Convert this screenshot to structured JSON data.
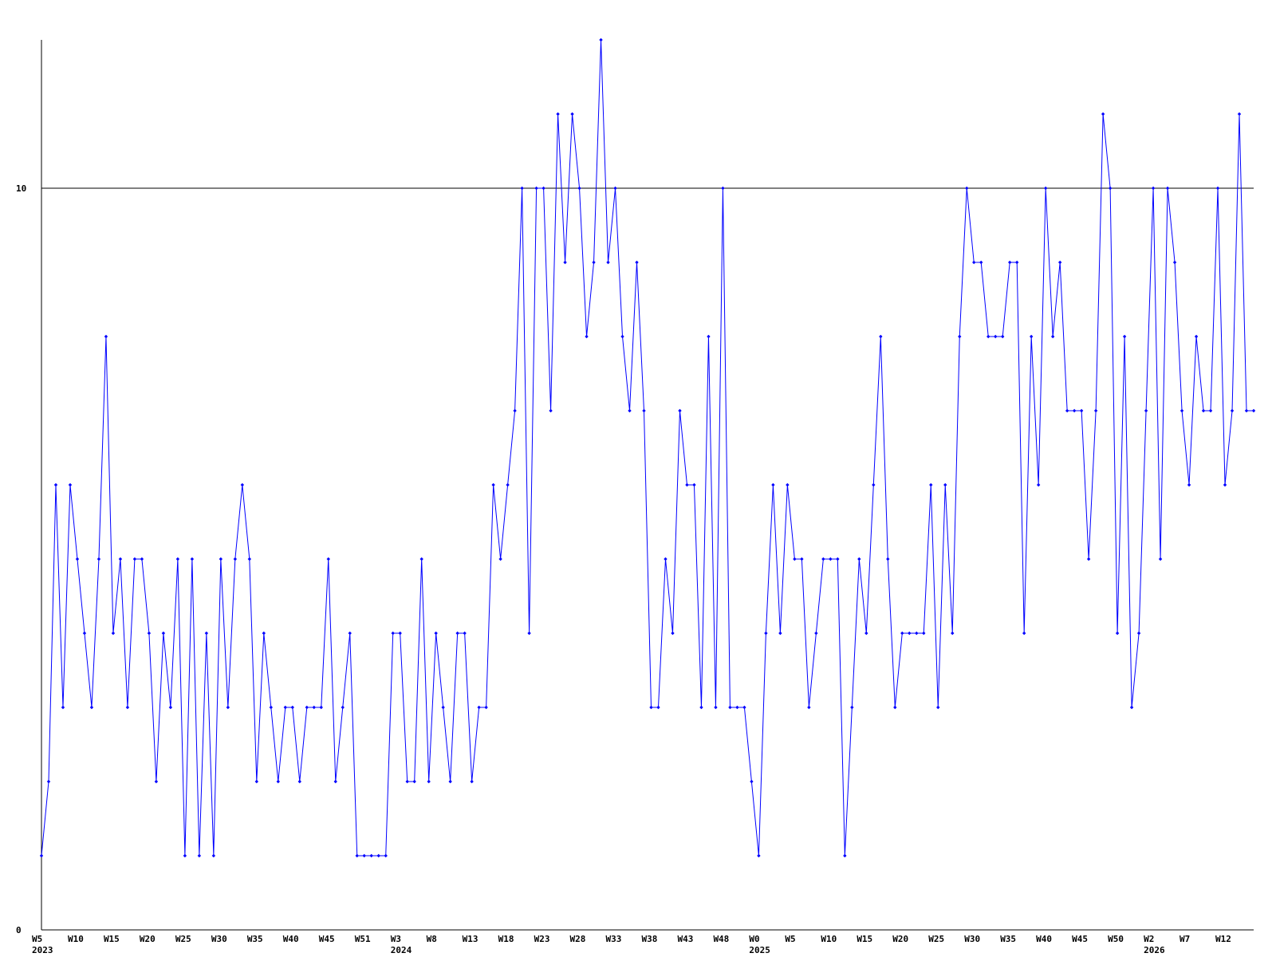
{
  "chart_data": {
    "type": "line",
    "color": "#0000ff",
    "grid": true,
    "ylim": [
      0,
      12
    ],
    "yticks": [
      0,
      10
    ],
    "categories": [
      "W5",
      null,
      null,
      null,
      null,
      "W10",
      null,
      null,
      null,
      null,
      "W15",
      null,
      null,
      null,
      null,
      "W20",
      null,
      null,
      null,
      null,
      "W25",
      null,
      null,
      null,
      null,
      "W30",
      null,
      null,
      null,
      null,
      "W35",
      null,
      null,
      null,
      null,
      "W40",
      null,
      null,
      null,
      null,
      "W45",
      null,
      null,
      null,
      null,
      "W51",
      null,
      null,
      null,
      null,
      "W3",
      null,
      null,
      null,
      null,
      "W8",
      null,
      null,
      null,
      null,
      "W13",
      null,
      null,
      null,
      null,
      "W18",
      null,
      null,
      null,
      null,
      "W23",
      null,
      null,
      null,
      null,
      "W28",
      null,
      null,
      null,
      null,
      "W33",
      null,
      null,
      null,
      null,
      "W38",
      null,
      null,
      null,
      null,
      "W43",
      null,
      null,
      null,
      null,
      "W48",
      null,
      null,
      null,
      null,
      "W0",
      null,
      null,
      null,
      null,
      "W5",
      null,
      null,
      null,
      null,
      "W10",
      null,
      null,
      null,
      null,
      "W15",
      null,
      null,
      null,
      null,
      "W20",
      null,
      null,
      null,
      null,
      "W25",
      null,
      null,
      null,
      null,
      "W30",
      null,
      null,
      null,
      null,
      "W35",
      null,
      null,
      null,
      null,
      "W40",
      null,
      null,
      null,
      null,
      "W45",
      null,
      null,
      null,
      null,
      "W50",
      null,
      null,
      null,
      null,
      "W2",
      null,
      null,
      null,
      null,
      "W7",
      null,
      null,
      null,
      null,
      "W12",
      null,
      null,
      null,
      null
    ],
    "category_years": [
      "2023",
      null,
      null,
      null,
      null,
      null,
      null,
      null,
      null,
      null,
      null,
      null,
      null,
      null,
      null,
      null,
      null,
      null,
      null,
      null,
      null,
      null,
      null,
      null,
      null,
      null,
      null,
      null,
      null,
      null,
      null,
      null,
      null,
      null,
      null,
      null,
      null,
      null,
      null,
      null,
      null,
      null,
      null,
      null,
      null,
      null,
      null,
      null,
      null,
      null,
      "2024",
      null,
      null,
      null,
      null,
      null,
      null,
      null,
      null,
      null,
      null,
      null,
      null,
      null,
      null,
      null,
      null,
      null,
      null,
      null,
      null,
      null,
      null,
      null,
      null,
      null,
      null,
      null,
      null,
      null,
      null,
      null,
      null,
      null,
      null,
      null,
      null,
      null,
      null,
      null,
      null,
      null,
      null,
      null,
      null,
      null,
      null,
      null,
      null,
      null,
      "2025",
      null,
      null,
      null,
      null,
      null,
      null,
      null,
      null,
      null,
      null,
      null,
      null,
      null,
      null,
      null,
      null,
      null,
      null,
      null,
      null,
      null,
      null,
      null,
      null,
      null,
      null,
      null,
      null,
      null,
      null,
      null,
      null,
      null,
      null,
      null,
      null,
      null,
      null,
      null,
      null,
      null,
      null,
      null,
      null,
      null,
      null,
      null,
      null,
      null,
      null,
      null,
      null,
      null,
      null,
      "2026",
      null,
      null,
      null,
      null,
      null,
      null,
      null,
      null,
      null,
      null,
      null,
      null,
      null,
      null
    ],
    "values": [
      1,
      2,
      6,
      3,
      6,
      5,
      4,
      3,
      5,
      8,
      4,
      5,
      3,
      5,
      5,
      4,
      2,
      4,
      3,
      5,
      1,
      5,
      1,
      4,
      1,
      5,
      3,
      5,
      6,
      5,
      2,
      4,
      3,
      2,
      3,
      3,
      2,
      3,
      3,
      3,
      5,
      2,
      3,
      4,
      1,
      1,
      1,
      1,
      1,
      4,
      4,
      2,
      2,
      5,
      2,
      4,
      3,
      2,
      4,
      4,
      2,
      3,
      3,
      6,
      5,
      6,
      7,
      10,
      4,
      10,
      10,
      7,
      11,
      9,
      11,
      10,
      8,
      9,
      12,
      9,
      10,
      8,
      7,
      9,
      7,
      3,
      3,
      5,
      4,
      7,
      6,
      6,
      3,
      8,
      3,
      10,
      3,
      3,
      3,
      2,
      1,
      4,
      6,
      4,
      6,
      5,
      5,
      3,
      4,
      5,
      5,
      5,
      1,
      3,
      5,
      4,
      6,
      8,
      5,
      3,
      4,
      4,
      4,
      4,
      6,
      3,
      6,
      4,
      8,
      10,
      9,
      9,
      8,
      8,
      8,
      9,
      9,
      4,
      8,
      6,
      10,
      8,
      9,
      7,
      7,
      7,
      5,
      7,
      11,
      10,
      4,
      8,
      3,
      4,
      7,
      10,
      5,
      10,
      9,
      7,
      6,
      8,
      7,
      7,
      10,
      6,
      7,
      11,
      7,
      7
    ]
  }
}
